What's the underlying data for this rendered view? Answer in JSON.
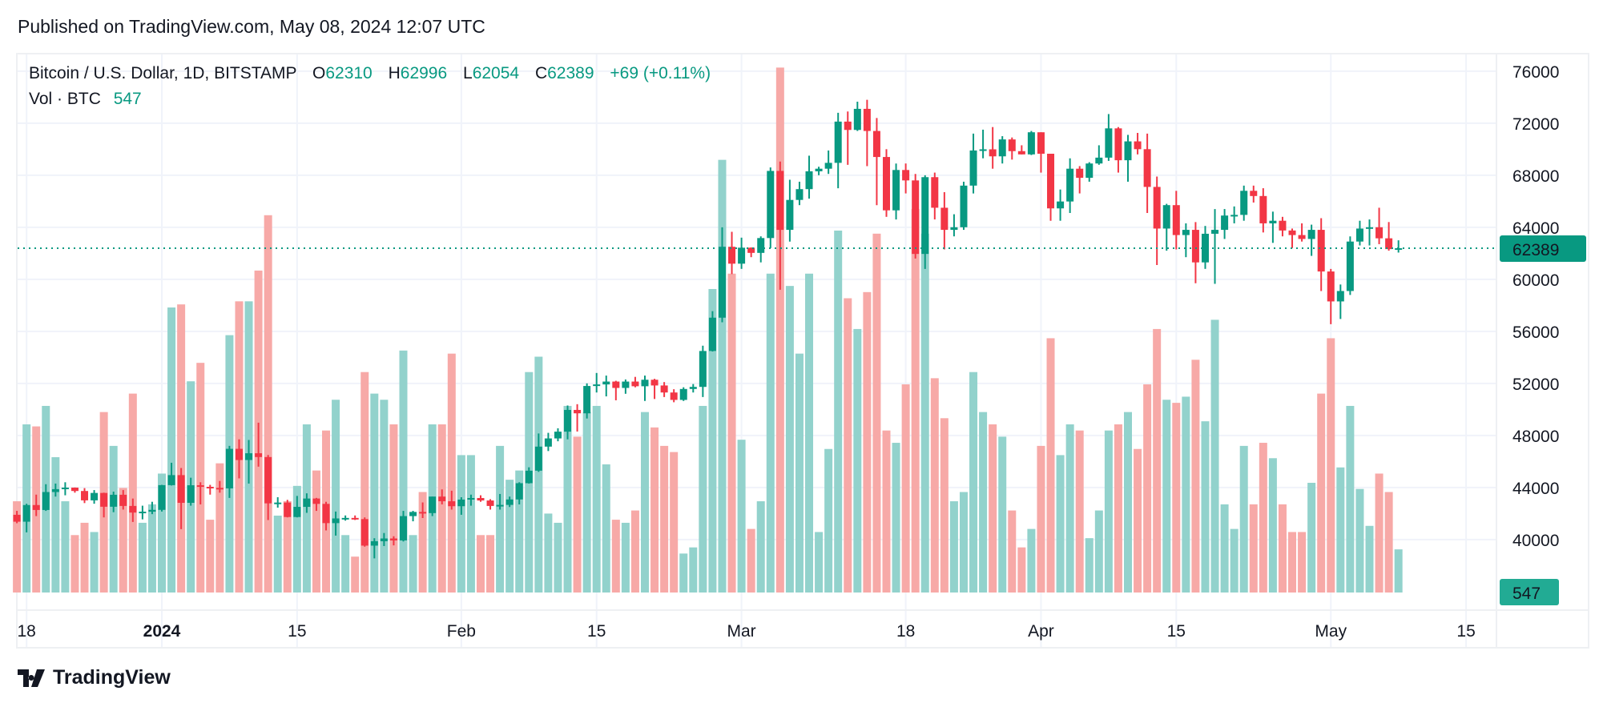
{
  "header": {
    "published": "Published on TradingView.com, May 08, 2024 12:07 UTC"
  },
  "legend": {
    "symbol": "Bitcoin / U.S. Dollar, 1D, BITSTAMP",
    "o_label": "O",
    "o": "62310",
    "h_label": "H",
    "h": "62996",
    "l_label": "L",
    "l": "62054",
    "c_label": "C",
    "c": "62389",
    "change": "+69 (+0.11%)",
    "vol_label": "Vol · BTC",
    "vol": "547"
  },
  "footer": {
    "brand": "TradingView",
    "logo_icon": "tradingview-logo-icon"
  },
  "colors": {
    "up": "#089981",
    "down": "#f23645",
    "vol_up": "#92d2cc",
    "vol_down": "#f7a9a7",
    "grid": "#f0f3fa"
  },
  "chart_data": {
    "type": "candlestick",
    "symbol": "BTCUSD",
    "interval": "1D",
    "ylim": [
      36000,
      77000
    ],
    "y_ticks": [
      40000,
      44000,
      48000,
      52000,
      56000,
      60000,
      64000,
      68000,
      72000,
      76000
    ],
    "x_ticks": [
      {
        "date": "2023-12-18",
        "label": "18",
        "bold": false
      },
      {
        "date": "2024-01-01",
        "label": "2024",
        "bold": true
      },
      {
        "date": "2024-01-15",
        "label": "15",
        "bold": false
      },
      {
        "date": "2024-02-01",
        "label": "Feb",
        "bold": false
      },
      {
        "date": "2024-02-15",
        "label": "15",
        "bold": false
      },
      {
        "date": "2024-03-01",
        "label": "Mar",
        "bold": false
      },
      {
        "date": "2024-03-18",
        "label": "18",
        "bold": false
      },
      {
        "date": "2024-04-01",
        "label": "Apr",
        "bold": false
      },
      {
        "date": "2024-04-15",
        "label": "15",
        "bold": false
      },
      {
        "date": "2024-05-01",
        "label": "May",
        "bold": false
      },
      {
        "date": "2024-05-15",
        "label": "15",
        "bold": false
      }
    ],
    "last_price": 62389,
    "last_price_label": "62389",
    "last_volume_label": "547",
    "grid": true,
    "columns": [
      "date",
      "open",
      "high",
      "low",
      "close",
      "volume"
    ],
    "candles": [
      [
        "2023-12-17",
        41900,
        42200,
        41250,
        41370,
        1157
      ],
      [
        "2023-12-18",
        41370,
        42750,
        40550,
        42650,
        2132
      ],
      [
        "2023-12-19",
        42650,
        43450,
        41800,
        42270,
        2106
      ],
      [
        "2023-12-20",
        42270,
        44250,
        42200,
        43650,
        2366
      ],
      [
        "2023-12-21",
        43650,
        44300,
        43300,
        43870,
        1716
      ],
      [
        "2023-12-22",
        43870,
        44400,
        43400,
        43990,
        1157
      ],
      [
        "2023-12-23",
        43990,
        44000,
        43600,
        43730,
        728
      ],
      [
        "2023-12-24",
        43730,
        43950,
        42800,
        43010,
        884
      ],
      [
        "2023-12-25",
        43010,
        43800,
        42750,
        43580,
        767
      ],
      [
        "2023-12-26",
        43580,
        43600,
        41700,
        42520,
        2288
      ],
      [
        "2023-12-27",
        42520,
        43680,
        42100,
        43440,
        1859
      ],
      [
        "2023-12-28",
        43440,
        43800,
        42300,
        42580,
        1326
      ],
      [
        "2023-12-29",
        42580,
        43150,
        41350,
        42070,
        2522
      ],
      [
        "2023-12-30",
        42070,
        42600,
        41550,
        42140,
        884
      ],
      [
        "2023-12-31",
        42140,
        42900,
        41950,
        42280,
        1118
      ],
      [
        "2024-01-01",
        42280,
        44200,
        42150,
        44180,
        1508
      ],
      [
        "2024-01-02",
        44180,
        45900,
        44150,
        44950,
        3614
      ],
      [
        "2024-01-03",
        44950,
        45500,
        40800,
        42820,
        3653
      ],
      [
        "2024-01-04",
        42820,
        44750,
        42600,
        44170,
        2678
      ],
      [
        "2024-01-05",
        44170,
        44400,
        42700,
        44050,
        2912
      ],
      [
        "2024-01-06",
        44050,
        44200,
        43450,
        43970,
        923
      ],
      [
        "2024-01-07",
        43970,
        44500,
        43600,
        43930,
        1638
      ],
      [
        "2024-01-08",
        43930,
        47200,
        43200,
        46970,
        3263
      ],
      [
        "2024-01-09",
        46970,
        47700,
        44700,
        46110,
        3692
      ],
      [
        "2024-01-10",
        46110,
        47650,
        44300,
        46630,
        3692
      ],
      [
        "2024-01-11",
        46630,
        48980,
        45600,
        46340,
        4082
      ],
      [
        "2024-01-12",
        46340,
        46500,
        41500,
        42780,
        4784
      ],
      [
        "2024-01-13",
        42780,
        43250,
        42450,
        42840,
        975
      ],
      [
        "2024-01-14",
        42840,
        43050,
        41700,
        41730,
        1157
      ],
      [
        "2024-01-15",
        41730,
        43350,
        41700,
        42510,
        1352
      ],
      [
        "2024-01-16",
        42510,
        43550,
        42050,
        43150,
        2132
      ],
      [
        "2024-01-17",
        43150,
        43200,
        42200,
        42740,
        1547
      ],
      [
        "2024-01-18",
        42740,
        42900,
        40700,
        41260,
        2054
      ],
      [
        "2024-01-19",
        41260,
        42150,
        40300,
        41620,
        2444
      ],
      [
        "2024-01-20",
        41620,
        41850,
        41450,
        41660,
        728
      ],
      [
        "2024-01-21",
        41660,
        41850,
        41500,
        41570,
        455
      ],
      [
        "2024-01-22",
        41570,
        41700,
        39450,
        39530,
        2795
      ],
      [
        "2024-01-23",
        39530,
        40100,
        38550,
        39870,
        2522
      ],
      [
        "2024-01-24",
        39870,
        40500,
        39500,
        40080,
        2444
      ],
      [
        "2024-01-25",
        40080,
        40250,
        39550,
        39930,
        2132
      ],
      [
        "2024-01-26",
        39930,
        42200,
        39850,
        41800,
        3068
      ],
      [
        "2024-01-27",
        41800,
        42200,
        41400,
        42120,
        728
      ],
      [
        "2024-01-28",
        42120,
        42850,
        41650,
        42030,
        1274
      ],
      [
        "2024-01-29",
        42030,
        43300,
        41800,
        43300,
        2132
      ],
      [
        "2024-01-30",
        43300,
        43850,
        42700,
        42940,
        2132
      ],
      [
        "2024-01-31",
        42940,
        43750,
        42300,
        42560,
        3029
      ],
      [
        "2024-02-01",
        42560,
        43250,
        41900,
        43070,
        1742
      ],
      [
        "2024-02-02",
        43070,
        43450,
        42600,
        43190,
        1742
      ],
      [
        "2024-02-03",
        43190,
        43400,
        42900,
        43000,
        728
      ],
      [
        "2024-02-04",
        43000,
        43100,
        42300,
        42580,
        728
      ],
      [
        "2024-02-05",
        42580,
        43500,
        42300,
        42660,
        1859
      ],
      [
        "2024-02-06",
        42660,
        43300,
        42500,
        43080,
        1430
      ],
      [
        "2024-02-07",
        43080,
        44400,
        42700,
        44330,
        1547
      ],
      [
        "2024-02-08",
        44330,
        45550,
        44300,
        45290,
        2795
      ],
      [
        "2024-02-09",
        45290,
        48150,
        45200,
        47140,
        2990
      ],
      [
        "2024-02-10",
        47140,
        48200,
        46800,
        47770,
        1001
      ],
      [
        "2024-02-11",
        47770,
        48550,
        47550,
        48290,
        884
      ],
      [
        "2024-02-12",
        48290,
        50300,
        47700,
        49960,
        2366
      ],
      [
        "2024-02-13",
        49960,
        50400,
        48300,
        49700,
        1976
      ],
      [
        "2024-02-14",
        49700,
        52000,
        49300,
        51800,
        2288
      ],
      [
        "2024-02-15",
        51800,
        52800,
        51300,
        51920,
        2366
      ],
      [
        "2024-02-16",
        51920,
        52600,
        51000,
        52140,
        1625
      ],
      [
        "2024-02-17",
        52140,
        52200,
        50700,
        51650,
        923
      ],
      [
        "2024-02-18",
        51650,
        52300,
        51200,
        52140,
        884
      ],
      [
        "2024-02-19",
        52140,
        52500,
        51700,
        51780,
        1040
      ],
      [
        "2024-02-20",
        51780,
        52600,
        50650,
        52280,
        2288
      ],
      [
        "2024-02-21",
        52280,
        52350,
        50800,
        51840,
        2093
      ],
      [
        "2024-02-22",
        51840,
        52100,
        50950,
        51300,
        1859
      ],
      [
        "2024-02-23",
        51300,
        51550,
        50550,
        50730,
        1781
      ],
      [
        "2024-02-24",
        50730,
        51700,
        50650,
        51570,
        494
      ],
      [
        "2024-02-25",
        51570,
        51950,
        51300,
        51730,
        572
      ],
      [
        "2024-02-26",
        51730,
        54900,
        50950,
        54490,
        2366
      ],
      [
        "2024-02-27",
        54490,
        57550,
        54450,
        57050,
        3848
      ],
      [
        "2024-02-28",
        57050,
        64000,
        56700,
        62500,
        5486
      ],
      [
        "2024-02-29",
        62500,
        63650,
        60400,
        61200,
        4043
      ],
      [
        "2024-03-01",
        61200,
        63200,
        60800,
        62430,
        1937
      ],
      [
        "2024-03-02",
        62430,
        62450,
        61700,
        62030,
        806
      ],
      [
        "2024-03-03",
        62030,
        63300,
        61300,
        63170,
        1157
      ],
      [
        "2024-03-04",
        63170,
        68600,
        62400,
        68330,
        4043
      ],
      [
        "2024-03-05",
        68330,
        69050,
        59200,
        63800,
        6656
      ],
      [
        "2024-03-06",
        63800,
        67650,
        62900,
        66100,
        3887
      ],
      [
        "2024-03-07",
        66100,
        67500,
        65700,
        66930,
        3029
      ],
      [
        "2024-03-08",
        66930,
        69500,
        66200,
        68300,
        4043
      ],
      [
        "2024-03-09",
        68300,
        68650,
        68000,
        68500,
        767
      ],
      [
        "2024-03-10",
        68500,
        69900,
        68100,
        68950,
        1820
      ],
      [
        "2024-03-11",
        68950,
        72800,
        67000,
        72120,
        4589
      ],
      [
        "2024-03-12",
        72120,
        72900,
        68800,
        71480,
        3731
      ],
      [
        "2024-03-13",
        71480,
        73650,
        71400,
        73100,
        3341
      ],
      [
        "2024-03-14",
        73100,
        73800,
        68700,
        71400,
        3809
      ],
      [
        "2024-03-15",
        71400,
        72400,
        65700,
        69400,
        4550
      ],
      [
        "2024-03-16",
        69400,
        70000,
        64800,
        65300,
        2054
      ],
      [
        "2024-03-17",
        65300,
        68900,
        64600,
        68400,
        1898
      ],
      [
        "2024-03-18",
        68400,
        68900,
        66600,
        67600,
        2639
      ],
      [
        "2024-03-19",
        67600,
        68100,
        61600,
        61950,
        4862
      ],
      [
        "2024-03-20",
        61950,
        68000,
        60800,
        67850,
        4550
      ],
      [
        "2024-03-21",
        67850,
        68200,
        64600,
        65500,
        2717
      ],
      [
        "2024-03-22",
        65500,
        66700,
        62300,
        63800,
        2210
      ],
      [
        "2024-03-23",
        63800,
        65000,
        63300,
        64000,
        1157
      ],
      [
        "2024-03-24",
        64000,
        67500,
        63800,
        67200,
        1274
      ],
      [
        "2024-03-25",
        67200,
        71200,
        66600,
        69900,
        2795
      ],
      [
        "2024-03-26",
        69900,
        71500,
        69300,
        69990,
        2288
      ],
      [
        "2024-03-27",
        69990,
        71700,
        68500,
        69450,
        2132
      ],
      [
        "2024-03-28",
        69450,
        71000,
        68900,
        70750,
        1976
      ],
      [
        "2024-03-29",
        70750,
        70900,
        69200,
        69850,
        1040
      ],
      [
        "2024-03-30",
        69850,
        70300,
        69600,
        69600,
        572
      ],
      [
        "2024-03-31",
        69600,
        71400,
        69550,
        71300,
        806
      ],
      [
        "2024-04-01",
        71300,
        71300,
        68200,
        69650,
        1859
      ],
      [
        "2024-04-02",
        69650,
        69650,
        64500,
        65450,
        3224
      ],
      [
        "2024-04-03",
        65450,
        66900,
        64500,
        65980,
        1742
      ],
      [
        "2024-04-04",
        65980,
        69300,
        65100,
        68500,
        2132
      ],
      [
        "2024-04-05",
        68500,
        68700,
        66600,
        67800,
        2054
      ],
      [
        "2024-04-06",
        67800,
        69000,
        67500,
        68900,
        689
      ],
      [
        "2024-04-07",
        68900,
        70300,
        68800,
        69350,
        1040
      ],
      [
        "2024-04-08",
        69350,
        72700,
        69100,
        71600,
        2054
      ],
      [
        "2024-04-09",
        71600,
        71700,
        68200,
        69150,
        2132
      ],
      [
        "2024-04-10",
        69150,
        71100,
        67500,
        70600,
        2288
      ],
      [
        "2024-04-11",
        70600,
        71250,
        69600,
        70000,
        1820
      ],
      [
        "2024-04-12",
        70000,
        71200,
        65100,
        67100,
        2639
      ],
      [
        "2024-04-13",
        67100,
        67900,
        61100,
        63900,
        3341
      ],
      [
        "2024-04-14",
        63900,
        65800,
        62200,
        65700,
        2444
      ],
      [
        "2024-04-15",
        65700,
        66800,
        62300,
        63400,
        2405
      ],
      [
        "2024-04-16",
        63400,
        64300,
        61700,
        63800,
        2483
      ],
      [
        "2024-04-17",
        63800,
        64400,
        59700,
        61300,
        2951
      ],
      [
        "2024-04-18",
        61300,
        64100,
        60800,
        63500,
        2171
      ],
      [
        "2024-04-19",
        63500,
        65400,
        59650,
        63800,
        3458
      ],
      [
        "2024-04-20",
        63800,
        65400,
        63100,
        64900,
        1118
      ],
      [
        "2024-04-21",
        64900,
        65600,
        64300,
        64950,
        806
      ],
      [
        "2024-04-22",
        64950,
        67200,
        64500,
        66800,
        1859
      ],
      [
        "2024-04-23",
        66800,
        67200,
        65900,
        66400,
        1118
      ],
      [
        "2024-04-24",
        66400,
        67000,
        63600,
        64300,
        1898
      ],
      [
        "2024-04-25",
        64300,
        65200,
        62800,
        64500,
        1703
      ],
      [
        "2024-04-26",
        64500,
        64800,
        63300,
        63750,
        1118
      ],
      [
        "2024-04-27",
        63750,
        63900,
        62400,
        63400,
        767
      ],
      [
        "2024-04-28",
        63400,
        64300,
        62900,
        63100,
        767
      ],
      [
        "2024-04-29",
        63100,
        64200,
        61800,
        63800,
        1391
      ],
      [
        "2024-04-30",
        63800,
        64700,
        59100,
        60600,
        2522
      ],
      [
        "2024-05-01",
        60600,
        60800,
        56550,
        58300,
        3224
      ],
      [
        "2024-05-02",
        58300,
        59600,
        56950,
        59100,
        1586
      ],
      [
        "2024-05-03",
        59100,
        63300,
        58800,
        62900,
        2366
      ],
      [
        "2024-05-04",
        62900,
        64500,
        62600,
        63900,
        1313
      ],
      [
        "2024-05-05",
        63900,
        64600,
        62600,
        64000,
        845
      ],
      [
        "2024-05-06",
        64000,
        65500,
        62700,
        63150,
        1508
      ],
      [
        "2024-05-07",
        63150,
        64400,
        62200,
        62320,
        1274
      ],
      [
        "2024-05-08",
        62310,
        62996,
        62054,
        62389,
        547
      ]
    ]
  }
}
